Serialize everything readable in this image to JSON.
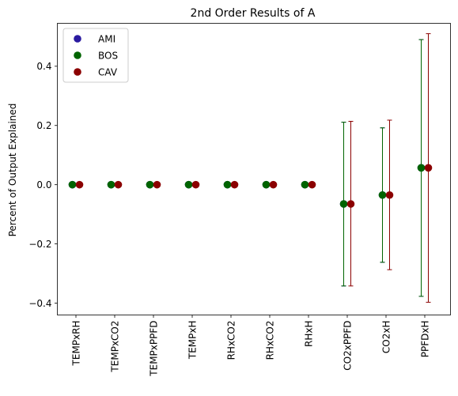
{
  "chart_data": {
    "type": "scatter",
    "title": "2nd Order Results of A",
    "xlabel": "",
    "ylabel": "Percent of Output Explained",
    "ylim": [
      -0.44,
      0.545
    ],
    "yticks": [
      -0.4,
      -0.2,
      0.0,
      0.2,
      0.4
    ],
    "ytick_labels": [
      "−0.4",
      "−0.2",
      "0.0",
      "0.2",
      "0.4"
    ],
    "categories": [
      "TEMPxRH",
      "TEMPxCO2",
      "TEMPxPPFD",
      "TEMPxH",
      "RHxCO2",
      "RHxCO2",
      "RHxH",
      "CO2xPPFD",
      "CO2xH",
      "PPFDxH"
    ],
    "grid": false,
    "legend_position": "top-left",
    "series": [
      {
        "name": "AMI",
        "color": "#2a1aa0",
        "values": [
          0,
          0,
          0,
          0,
          0,
          0,
          0,
          -0.065,
          -0.035,
          0.057
        ],
        "err_low": [
          0,
          0,
          0,
          0,
          0,
          0,
          0,
          -0.342,
          -0.262,
          -0.377
        ],
        "err_high": [
          0,
          0,
          0,
          0,
          0,
          0,
          0,
          0.211,
          0.192,
          0.49
        ]
      },
      {
        "name": "BOS",
        "color": "#006400",
        "values": [
          0,
          0,
          0,
          0,
          0,
          0,
          0,
          -0.065,
          -0.035,
          0.057
        ],
        "err_low": [
          0,
          0,
          0,
          0,
          0,
          0,
          0,
          -0.342,
          -0.262,
          -0.377
        ],
        "err_high": [
          0,
          0,
          0,
          0,
          0,
          0,
          0,
          0.211,
          0.192,
          0.49
        ]
      },
      {
        "name": "CAV",
        "color": "#8b0000",
        "values": [
          0,
          0,
          0,
          0,
          0,
          0,
          0,
          -0.065,
          -0.035,
          0.057
        ],
        "err_low": [
          0,
          0,
          0,
          0,
          0,
          0,
          0,
          -0.342,
          -0.287,
          -0.397
        ],
        "err_high": [
          0,
          0,
          0,
          0,
          0,
          0,
          0,
          0.214,
          0.218,
          0.51
        ]
      }
    ]
  }
}
